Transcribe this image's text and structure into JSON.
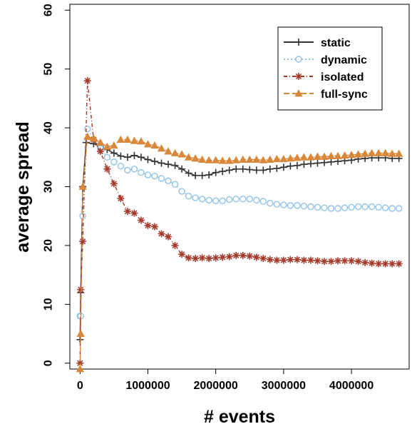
{
  "chart_data": {
    "type": "line",
    "title": "",
    "xlabel": "# events",
    "ylabel": "average spread",
    "xlim": [
      -150000,
      4850000
    ],
    "ylim": [
      -1,
      61
    ],
    "xticks": [
      0,
      1000000,
      2000000,
      3000000,
      4000000
    ],
    "xtick_labels": [
      "0",
      "1000000",
      "2000000",
      "3000000",
      "4000000"
    ],
    "yticks": [
      0,
      10,
      20,
      30,
      40,
      50,
      60
    ],
    "ytick_labels": [
      "0",
      "10",
      "20",
      "30",
      "40",
      "50",
      "60"
    ],
    "grid": false,
    "legend_position": "top-right",
    "series": [
      {
        "name": "static",
        "color": "#333333",
        "marker": "plus",
        "dash": "solid",
        "points": [
          [
            0,
            4
          ],
          [
            10000,
            12
          ],
          [
            40000,
            30
          ],
          [
            90000,
            37.5
          ],
          [
            200000,
            37.3
          ],
          [
            300000,
            36.8
          ],
          [
            400000,
            36.3
          ],
          [
            500000,
            35.7
          ],
          [
            600000,
            35.2
          ],
          [
            700000,
            35
          ],
          [
            800000,
            35.3
          ],
          [
            900000,
            35
          ],
          [
            1000000,
            34.6
          ],
          [
            1100000,
            34.3
          ],
          [
            1200000,
            34
          ],
          [
            1300000,
            33.8
          ],
          [
            1400000,
            33.6
          ],
          [
            1500000,
            33
          ],
          [
            1600000,
            32.3
          ],
          [
            1700000,
            31.9
          ],
          [
            1800000,
            31.9
          ],
          [
            1900000,
            32
          ],
          [
            2000000,
            32.4
          ],
          [
            2100000,
            32.6
          ],
          [
            2200000,
            32.8
          ],
          [
            2300000,
            33
          ],
          [
            2400000,
            33
          ],
          [
            2500000,
            32.9
          ],
          [
            2600000,
            32.8
          ],
          [
            2700000,
            32.8
          ],
          [
            2800000,
            33
          ],
          [
            2900000,
            33.1
          ],
          [
            3000000,
            33.3
          ],
          [
            3100000,
            33.5
          ],
          [
            3200000,
            33.6
          ],
          [
            3300000,
            33.8
          ],
          [
            3400000,
            33.9
          ],
          [
            3500000,
            34
          ],
          [
            3600000,
            34.1
          ],
          [
            3700000,
            34.2
          ],
          [
            3800000,
            34.3
          ],
          [
            3900000,
            34.4
          ],
          [
            4000000,
            34.5
          ],
          [
            4100000,
            34.7
          ],
          [
            4200000,
            34.8
          ],
          [
            4300000,
            34.9
          ],
          [
            4400000,
            34.9
          ],
          [
            4500000,
            34.9
          ],
          [
            4600000,
            34.8
          ],
          [
            4700000,
            34.8
          ]
        ]
      },
      {
        "name": "dynamic",
        "color": "#8ec3e6",
        "marker": "circle",
        "dash": "dotted",
        "points": [
          [
            0,
            8
          ],
          [
            10000,
            8
          ],
          [
            40000,
            25
          ],
          [
            110000,
            39.8
          ],
          [
            200000,
            38
          ],
          [
            300000,
            36.5
          ],
          [
            400000,
            35
          ],
          [
            500000,
            34.2
          ],
          [
            600000,
            33.5
          ],
          [
            700000,
            32.8
          ],
          [
            800000,
            33
          ],
          [
            900000,
            32.4
          ],
          [
            1000000,
            32
          ],
          [
            1100000,
            31.8
          ],
          [
            1200000,
            31.4
          ],
          [
            1300000,
            31
          ],
          [
            1400000,
            30.4
          ],
          [
            1500000,
            29.2
          ],
          [
            1600000,
            28.4
          ],
          [
            1700000,
            28.1
          ],
          [
            1800000,
            27.9
          ],
          [
            1900000,
            27.7
          ],
          [
            2000000,
            27.6
          ],
          [
            2100000,
            27.6
          ],
          [
            2200000,
            27.8
          ],
          [
            2300000,
            27.9
          ],
          [
            2400000,
            27.9
          ],
          [
            2500000,
            27.9
          ],
          [
            2600000,
            27.7
          ],
          [
            2700000,
            27.5
          ],
          [
            2800000,
            27.2
          ],
          [
            2900000,
            27
          ],
          [
            3000000,
            26.9
          ],
          [
            3100000,
            26.8
          ],
          [
            3200000,
            26.8
          ],
          [
            3300000,
            26.7
          ],
          [
            3400000,
            26.6
          ],
          [
            3500000,
            26.5
          ],
          [
            3600000,
            26.4
          ],
          [
            3700000,
            26.3
          ],
          [
            3800000,
            26.3
          ],
          [
            3900000,
            26.4
          ],
          [
            4000000,
            26.5
          ],
          [
            4100000,
            26.6
          ],
          [
            4200000,
            26.6
          ],
          [
            4300000,
            26.6
          ],
          [
            4400000,
            26.5
          ],
          [
            4500000,
            26.4
          ],
          [
            4600000,
            26.3
          ],
          [
            4700000,
            26.3
          ]
        ]
      },
      {
        "name": "isolated",
        "color": "#a63a2a",
        "marker": "asterisk",
        "dash": "dashdot",
        "points": [
          [
            0,
            0
          ],
          [
            10000,
            12.5
          ],
          [
            40000,
            20.7
          ],
          [
            110000,
            48
          ],
          [
            200000,
            38
          ],
          [
            300000,
            36
          ],
          [
            400000,
            33
          ],
          [
            500000,
            30.5
          ],
          [
            600000,
            28
          ],
          [
            700000,
            25.8
          ],
          [
            800000,
            25.5
          ],
          [
            900000,
            24.3
          ],
          [
            1000000,
            23.4
          ],
          [
            1100000,
            23.2
          ],
          [
            1200000,
            22
          ],
          [
            1300000,
            21.5
          ],
          [
            1400000,
            20
          ],
          [
            1500000,
            18.5
          ],
          [
            1600000,
            17.9
          ],
          [
            1700000,
            17.8
          ],
          [
            1800000,
            17.9
          ],
          [
            1900000,
            17.8
          ],
          [
            2000000,
            17.9
          ],
          [
            2100000,
            18
          ],
          [
            2200000,
            18.1
          ],
          [
            2300000,
            18.3
          ],
          [
            2400000,
            18.3
          ],
          [
            2500000,
            18.2
          ],
          [
            2600000,
            18
          ],
          [
            2700000,
            17.8
          ],
          [
            2800000,
            17.6
          ],
          [
            2900000,
            17.5
          ],
          [
            3000000,
            17.5
          ],
          [
            3100000,
            17.6
          ],
          [
            3200000,
            17.6
          ],
          [
            3300000,
            17.5
          ],
          [
            3400000,
            17.5
          ],
          [
            3500000,
            17.4
          ],
          [
            3600000,
            17.3
          ],
          [
            3700000,
            17.3
          ],
          [
            3800000,
            17.4
          ],
          [
            3900000,
            17.4
          ],
          [
            4000000,
            17.4
          ],
          [
            4100000,
            17.3
          ],
          [
            4200000,
            17.1
          ],
          [
            4300000,
            17
          ],
          [
            4400000,
            16.9
          ],
          [
            4500000,
            16.9
          ],
          [
            4600000,
            16.9
          ],
          [
            4700000,
            16.9
          ]
        ]
      },
      {
        "name": "full-sync",
        "color": "#d9883a",
        "marker": "triangle",
        "dash": "longdash",
        "points": [
          [
            0,
            -1
          ],
          [
            10000,
            5
          ],
          [
            40000,
            30
          ],
          [
            110000,
            38.5
          ],
          [
            200000,
            38.2
          ],
          [
            300000,
            37.5
          ],
          [
            400000,
            36.8
          ],
          [
            500000,
            37
          ],
          [
            600000,
            38
          ],
          [
            700000,
            38
          ],
          [
            800000,
            37.8
          ],
          [
            900000,
            37.7
          ],
          [
            1000000,
            37.2
          ],
          [
            1100000,
            37
          ],
          [
            1200000,
            36.5
          ],
          [
            1300000,
            36
          ],
          [
            1400000,
            35.7
          ],
          [
            1500000,
            35.5
          ],
          [
            1600000,
            35
          ],
          [
            1700000,
            34.8
          ],
          [
            1800000,
            34.6
          ],
          [
            1900000,
            34.5
          ],
          [
            2000000,
            34.5
          ],
          [
            2100000,
            34.4
          ],
          [
            2200000,
            34.4
          ],
          [
            2300000,
            34.5
          ],
          [
            2400000,
            34.6
          ],
          [
            2500000,
            34.6
          ],
          [
            2600000,
            34.6
          ],
          [
            2700000,
            34.5
          ],
          [
            2800000,
            34.6
          ],
          [
            2900000,
            34.7
          ],
          [
            3000000,
            34.7
          ],
          [
            3100000,
            34.8
          ],
          [
            3200000,
            34.9
          ],
          [
            3300000,
            35
          ],
          [
            3400000,
            35
          ],
          [
            3500000,
            35.1
          ],
          [
            3600000,
            35.1
          ],
          [
            3700000,
            35.2
          ],
          [
            3800000,
            35.2
          ],
          [
            3900000,
            35.3
          ],
          [
            4000000,
            35.4
          ],
          [
            4100000,
            35.5
          ],
          [
            4200000,
            35.6
          ],
          [
            4300000,
            35.7
          ],
          [
            4400000,
            35.7
          ],
          [
            4500000,
            35.7
          ],
          [
            4600000,
            35.6
          ],
          [
            4700000,
            35.6
          ]
        ]
      }
    ]
  }
}
